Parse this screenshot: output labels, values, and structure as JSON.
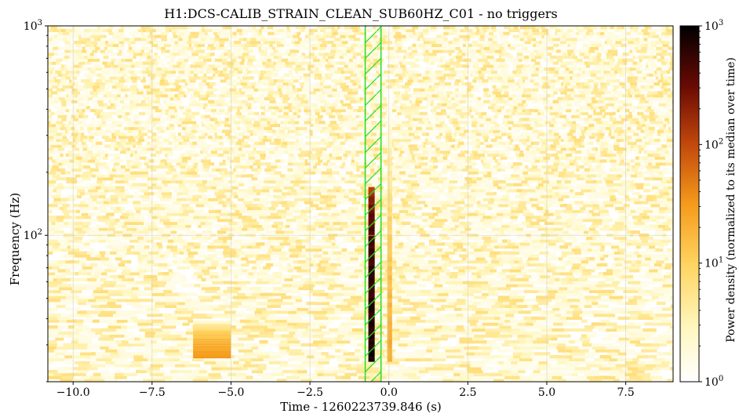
{
  "chart_data": {
    "type": "heatmap",
    "title": "H1:DCS-CALIB_STRAIN_CLEAN_SUB60HZ_C01 - no triggers",
    "xlabel": "Time - 1260223739.846 (s)",
    "ylabel": "Frequency (Hz)",
    "xlim": [
      -10.8,
      9.0
    ],
    "ylim": [
      20,
      1000
    ],
    "yscale": "log",
    "x_ticks": [
      -10.0,
      -7.5,
      -5.0,
      -2.5,
      0.0,
      2.5,
      5.0,
      7.5
    ],
    "x_tick_labels": [
      "−10.0",
      "−7.5",
      "−5.0",
      "−2.5",
      "0.0",
      "2.5",
      "5.0",
      "7.5"
    ],
    "y_ticks": [
      {
        "base": "10",
        "exp": "2",
        "value": 100
      },
      {
        "base": "10",
        "exp": "3",
        "value": 1000
      }
    ],
    "grid": true,
    "colormap": "YlOrBr-afmhot (white → yellow → orange → dark red → black)",
    "colorbar": {
      "label": "Power density (normalized to its median over time)",
      "scale": "log",
      "range": [
        1,
        1000
      ],
      "ticks": [
        {
          "base": "10",
          "exp": "0",
          "value": 1
        },
        {
          "base": "10",
          "exp": "1",
          "value": 10
        },
        {
          "base": "10",
          "exp": "2",
          "value": 100
        },
        {
          "base": "10",
          "exp": "3",
          "value": 1000
        }
      ]
    },
    "features": [
      {
        "name": "main-event",
        "x_range": [
          -0.65,
          -0.45
        ],
        "freq_range": [
          25,
          170
        ],
        "peak_power": 1000
      },
      {
        "name": "secondary-track",
        "x_range": [
          -0.05,
          0.1
        ],
        "freq_range": [
          25,
          500
        ],
        "peak_power": 30
      },
      {
        "name": "glitch",
        "x_range": [
          -6.2,
          -5.0
        ],
        "freq_range": [
          26,
          40
        ],
        "peak_power": 40
      }
    ],
    "overlay": {
      "x_range": [
        -0.75,
        -0.25
      ],
      "color": "#22dd22",
      "style": "hatched"
    }
  }
}
